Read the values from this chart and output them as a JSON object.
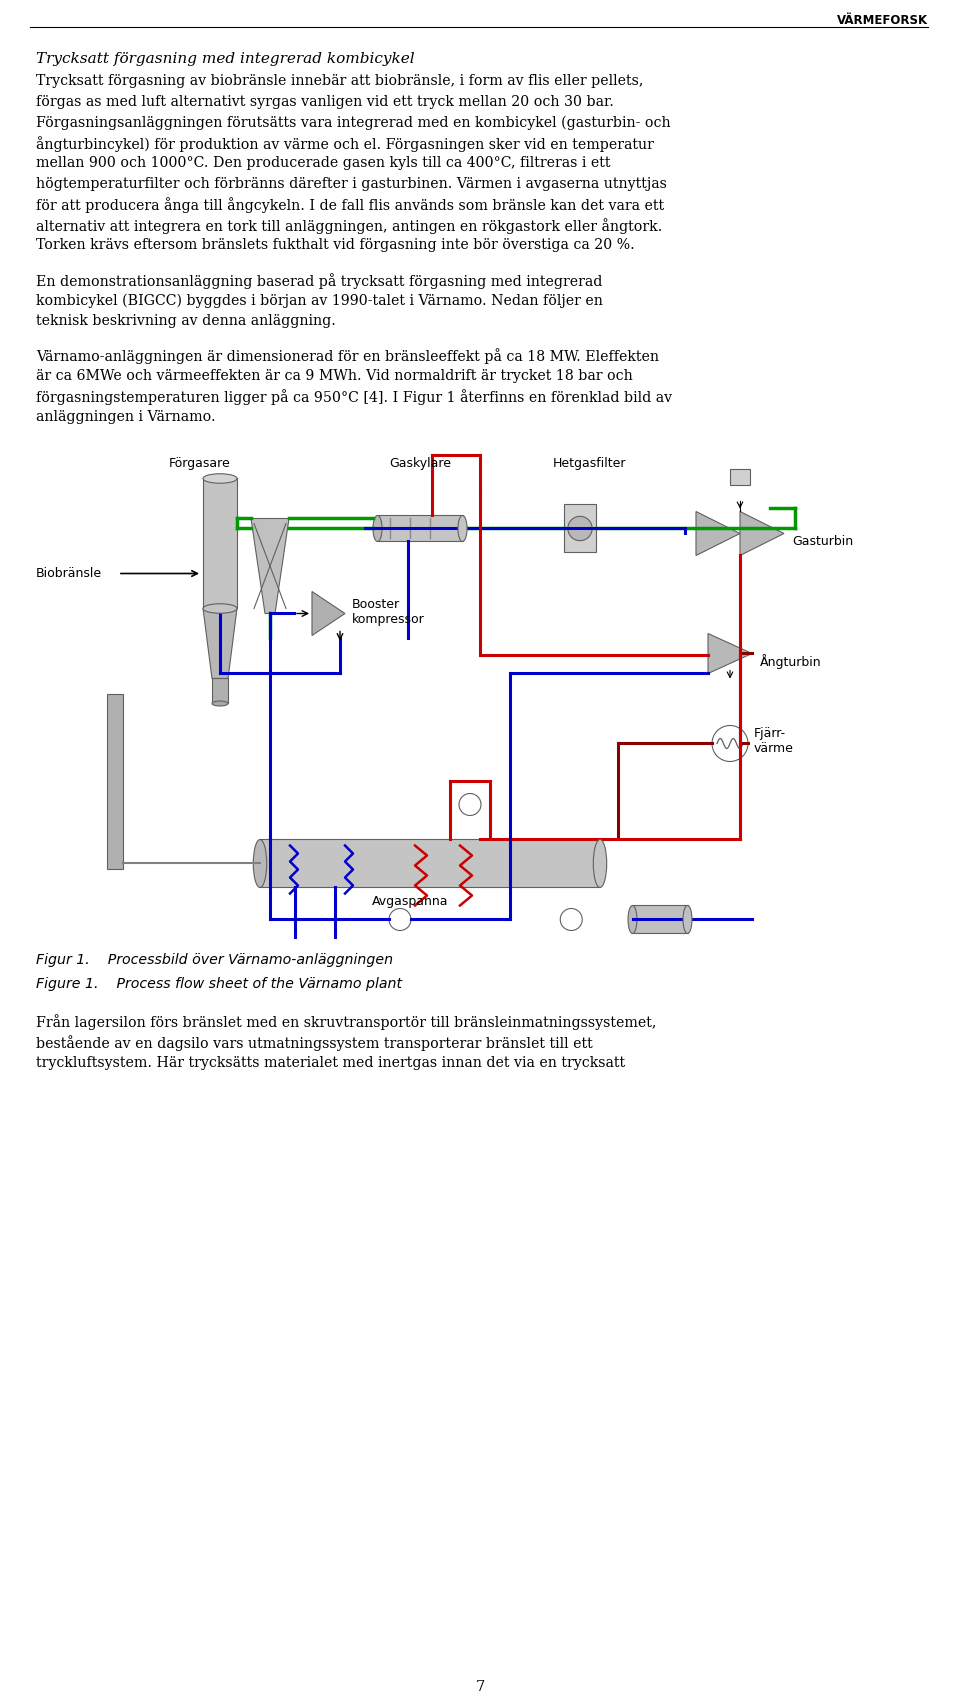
{
  "page_width": 9.6,
  "page_height": 17.01,
  "background_color": "#ffffff",
  "header_text": "VÄRMEFORSK",
  "title_line": "Trycksatt förgasning med integrerad kombicykel",
  "para1_lines": [
    "Trycksatt förgasning av biobränsle innebär att biobränsle, i form av flis eller pellets,",
    "förgas as med luft alternativt syrgas vanligen vid ett tryck mellan 20 och 30 bar.",
    "Förgasningsanläggningen förutsätts vara integrerad med en kombicykel (gasturbin- och",
    "ångturbincykel) för produktion av värme och el. Förgasningen sker vid en temperatur",
    "mellan 900 och 1000°C. Den producerade gasen kyls till ca 400°C, filtreras i ett",
    "högtemperaturfilter och förbränns därefter i gasturbinen. Värmen i avgaserna utnyttjas",
    "för att producera ånga till ångcykeln. I de fall flis används som bränsle kan det vara ett",
    "alternativ att integrera en tork till anläggningen, antingen en rökgastork eller ångtork.",
    "Torken krävs eftersom bränslets fukthalt vid förgasning inte bör överstiga ca 20 %."
  ],
  "para2_lines": [
    "En demonstrationsanläggning baserad på trycksatt förgasning med integrerad",
    "kombicykel (BIGCC) byggdes i början av 1990-talet i Värnamo. Nedan följer en",
    "teknisk beskrivning av denna anläggning."
  ],
  "para3_lines": [
    "Värnamo-anläggningen är dimensionerad för en bränsleeffekt på ca 18 MW. Eleffekten",
    "är ca 6MWe och värmeeffekten är ca 9 MWh. Vid normaldrift är trycket 18 bar och",
    "förgasningstemperaturen ligger på ca 950°C [4]. I Figur 1 återfinns en förenklad bild av",
    "anläggningen i Värnamo."
  ],
  "caption_sv": "Figur 1.    Processbild över Värnamo-anläggningen",
  "caption_en": "Figure 1.    Process flow sheet of the Värnamo plant",
  "para4_lines": [
    "Från lagersilon förs bränslet med en skruvtransportör till bränsleinmatningssystemet,",
    "bestående av en dagsilo vars utmatningssystem transporterar bränslet till ett",
    "tryckluftsystem. Här trycksätts materialet med inertgas innan det via en trycksatt"
  ],
  "page_number": "7",
  "lbl_forgasare": "Förgasare",
  "lbl_gaskylare": "Gaskylare",
  "lbl_hetgasfilter": "Hetgasfilter",
  "lbl_biobransle": "Biobränsle",
  "lbl_booster": "Booster\nkompressor",
  "lbl_gasturbin": "Gasturbin",
  "lbl_angturbin": "Ångturbin",
  "lbl_fjarrvarme": "Fjärr-\nvärme",
  "lbl_avgaspanna": "Avgaspanna",
  "col_green": "#009900",
  "col_red": "#cc0000",
  "col_blue": "#0000cc",
  "col_darkred": "#880000",
  "col_gray": "#a0a0a0",
  "col_darkgray": "#606060"
}
